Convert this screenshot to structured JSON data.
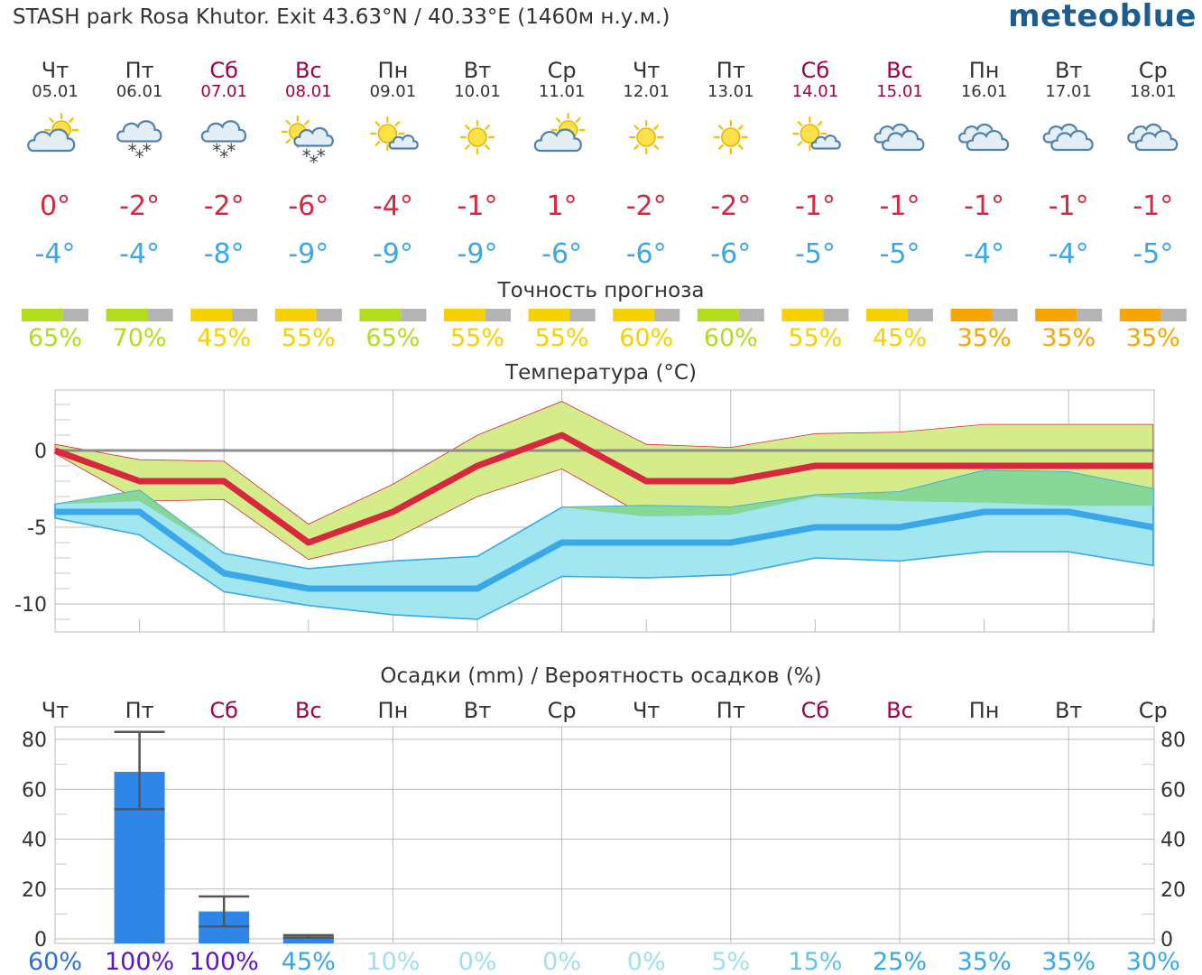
{
  "header": {
    "location": "STASH park Rosa Khutor. Exit  43.63°N / 40.33°E (1460м н.у.м.)",
    "brand": "meteoblue"
  },
  "colors": {
    "weekday": "#333333",
    "weekend": "#a0004a",
    "tmax": "#d8283f",
    "tmin": "#3aa8e8",
    "tmax_band": "#d5ec8a",
    "tmin_band": "#a2e6ef",
    "band_overlap": "#86d690",
    "precip_bar": "#2e87e6",
    "acc_green": "#b2dd1c",
    "acc_yellow": "#f7d200",
    "acc_orange": "#f7a500",
    "acc_gray": "#b4b4b4"
  },
  "days": [
    {
      "dow": "Чт",
      "date": "05.01",
      "weekend": false,
      "icon": "sun-behind-cloud-icon",
      "tmax": "0°",
      "tmin": "-4°"
    },
    {
      "dow": "Пт",
      "date": "06.01",
      "weekend": false,
      "icon": "cloud-snow-icon",
      "tmax": "-2°",
      "tmin": "-4°"
    },
    {
      "dow": "Сб",
      "date": "07.01",
      "weekend": true,
      "icon": "cloud-snow-icon",
      "tmax": "-2°",
      "tmin": "-8°"
    },
    {
      "dow": "Вс",
      "date": "08.01",
      "weekend": true,
      "icon": "sun-cloud-snow-icon",
      "tmax": "-6°",
      "tmin": "-9°"
    },
    {
      "dow": "Пн",
      "date": "09.01",
      "weekend": false,
      "icon": "sun-small-cloud-icon",
      "tmax": "-4°",
      "tmin": "-9°"
    },
    {
      "dow": "Вт",
      "date": "10.01",
      "weekend": false,
      "icon": "sun-icon",
      "tmax": "-1°",
      "tmin": "-9°"
    },
    {
      "dow": "Ср",
      "date": "11.01",
      "weekend": false,
      "icon": "sun-behind-cloud-icon",
      "tmax": "1°",
      "tmin": "-6°"
    },
    {
      "dow": "Чт",
      "date": "12.01",
      "weekend": false,
      "icon": "sun-icon",
      "tmax": "-2°",
      "tmin": "-6°"
    },
    {
      "dow": "Пт",
      "date": "13.01",
      "weekend": false,
      "icon": "sun-icon",
      "tmax": "-2°",
      "tmin": "-6°"
    },
    {
      "dow": "Сб",
      "date": "14.01",
      "weekend": true,
      "icon": "sun-small-cloud-icon",
      "tmax": "-1°",
      "tmin": "-5°"
    },
    {
      "dow": "Вс",
      "date": "15.01",
      "weekend": true,
      "icon": "cloud-icon",
      "tmax": "-1°",
      "tmin": "-5°"
    },
    {
      "dow": "Пн",
      "date": "16.01",
      "weekend": false,
      "icon": "cloud-icon",
      "tmax": "-1°",
      "tmin": "-4°"
    },
    {
      "dow": "Вт",
      "date": "17.01",
      "weekend": false,
      "icon": "cloud-icon",
      "tmax": "-1°",
      "tmin": "-4°"
    },
    {
      "dow": "Ср",
      "date": "18.01",
      "weekend": false,
      "icon": "cloud-icon",
      "tmax": "-1°",
      "tmin": "-5°"
    }
  ],
  "chart_data": [
    {
      "type": "bar",
      "title": "Точность прогноза",
      "categories": [
        "Чт 05.01",
        "Пт 06.01",
        "Сб 07.01",
        "Вс 08.01",
        "Пн 09.01",
        "Вт 10.01",
        "Ср 11.01",
        "Чт 12.01",
        "Пт 13.01",
        "Сб 14.01",
        "Вс 15.01",
        "Пн 16.01",
        "Вт 17.01",
        "Ср 18.01"
      ],
      "values": [
        65,
        70,
        45,
        55,
        65,
        55,
        55,
        60,
        60,
        55,
        45,
        35,
        35,
        35
      ],
      "labels": [
        "65%",
        "70%",
        "45%",
        "55%",
        "65%",
        "55%",
        "55%",
        "60%",
        "60%",
        "55%",
        "45%",
        "35%",
        "35%",
        "35%"
      ],
      "level_colors": [
        "acc_green",
        "acc_green",
        "acc_yellow",
        "acc_yellow",
        "acc_green",
        "acc_yellow",
        "acc_yellow",
        "acc_yellow",
        "acc_green",
        "acc_yellow",
        "acc_yellow",
        "acc_orange",
        "acc_orange",
        "acc_orange"
      ]
    },
    {
      "type": "line",
      "title": "Температура (°C)",
      "categories": [
        "05.01",
        "06.01",
        "07.01",
        "08.01",
        "09.01",
        "10.01",
        "11.01",
        "12.01",
        "13.01",
        "14.01",
        "15.01",
        "16.01",
        "17.01",
        "18.01"
      ],
      "ylim": [
        -12.0,
        4.0
      ],
      "yticks": [
        {
          "value": 0,
          "label": "0"
        },
        {
          "value": -5,
          "label": "-5"
        },
        {
          "value": -10,
          "label": "-10"
        }
      ],
      "grid": true,
      "series": [
        {
          "name": "tmax",
          "values": [
            0,
            -2,
            -2,
            -6,
            -4,
            -1,
            1,
            -2,
            -2,
            -1,
            -1,
            -1,
            -1,
            -1
          ],
          "upper": [
            0.4,
            -0.6,
            -0.7,
            -4.8,
            -2.2,
            1.0,
            3.2,
            0.4,
            0.2,
            1.1,
            1.2,
            1.7,
            1.7,
            1.7
          ],
          "lower": [
            -0.2,
            -3.3,
            -3.2,
            -7.1,
            -5.8,
            -3.0,
            -1.2,
            -4.3,
            -4.2,
            -3.0,
            -3.3,
            -3.4,
            -3.6,
            -3.6
          ]
        },
        {
          "name": "tmin",
          "values": [
            -4,
            -4,
            -8,
            -9,
            -9,
            -9,
            -6,
            -6,
            -6,
            -5,
            -5,
            -4,
            -4,
            -5
          ],
          "upper": [
            -3.5,
            -2.6,
            -6.7,
            -7.7,
            -7.2,
            -6.9,
            -3.7,
            -3.6,
            -3.7,
            -2.9,
            -2.7,
            -1.3,
            -1.4,
            -2.5
          ],
          "lower": [
            -4.4,
            -5.5,
            -9.2,
            -10.1,
            -10.7,
            -11.0,
            -8.2,
            -8.3,
            -8.1,
            -7.0,
            -7.2,
            -6.6,
            -6.6,
            -7.5
          ]
        }
      ]
    },
    {
      "type": "bar",
      "title": "Осадки (mm) / Вероятность осадков (%)",
      "categories": [
        "Чт",
        "Пт",
        "Сб",
        "Вс",
        "Пн",
        "Вт",
        "Ср",
        "Чт",
        "Пт",
        "Сб",
        "Вс",
        "Пн",
        "Вт",
        "Ср"
      ],
      "ylim": [
        0,
        80
      ],
      "yticks": [
        0,
        20,
        40,
        60,
        80
      ],
      "grid": true,
      "series": [
        {
          "name": "precip_mm",
          "values": [
            0,
            67,
            11,
            1,
            0,
            0,
            0,
            0,
            0,
            0,
            0,
            0,
            0,
            0
          ]
        }
      ],
      "error_bars": [
        {
          "index": 1,
          "low": 52,
          "high": 83
        },
        {
          "index": 2,
          "low": 5,
          "high": 17
        },
        {
          "index": 3,
          "low": 0.5,
          "high": 1.5
        }
      ],
      "probability": [
        "60%",
        "100%",
        "100%",
        "45%",
        "10%",
        "0%",
        "0%",
        "0%",
        "5%",
        "15%",
        "25%",
        "35%",
        "35%",
        "30%"
      ],
      "probability_values": [
        60,
        100,
        100,
        45,
        10,
        0,
        0,
        0,
        5,
        15,
        25,
        35,
        35,
        30
      ]
    }
  ]
}
